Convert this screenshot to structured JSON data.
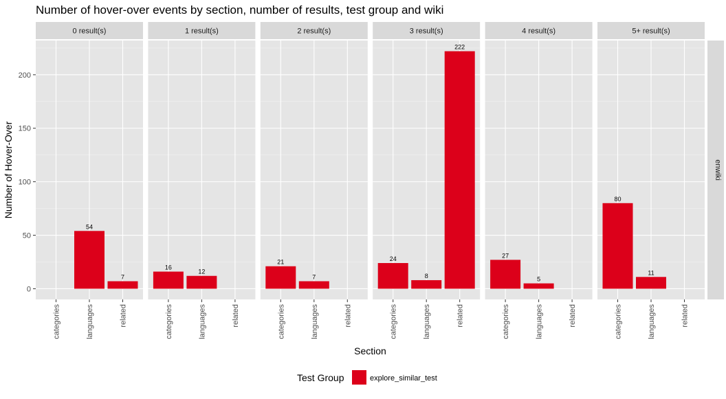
{
  "chart_data": {
    "type": "bar",
    "title": "Number of hover-over events by section, number of results, test group and wiki",
    "xlabel": "Section",
    "ylabel": "Number of Hover-Over",
    "ylim": [
      -10,
      232
    ],
    "yticks": [
      0,
      50,
      100,
      150,
      200
    ],
    "categories": [
      "categories",
      "languages",
      "related"
    ],
    "row_facet": "enwiki",
    "legend": {
      "title": "Test Group",
      "position": "bottom",
      "entries": [
        {
          "name": "explore_similar_test",
          "color": "#DC001A"
        }
      ]
    },
    "grid": true,
    "panels": [
      {
        "label": "0 result(s)",
        "values": [
          null,
          54,
          7
        ]
      },
      {
        "label": "1 result(s)",
        "values": [
          16,
          12,
          null
        ]
      },
      {
        "label": "2 result(s)",
        "values": [
          21,
          7,
          null
        ]
      },
      {
        "label": "3 result(s)",
        "values": [
          24,
          8,
          222
        ]
      },
      {
        "label": "4 result(s)",
        "values": [
          27,
          5,
          null
        ]
      },
      {
        "label": "5+ result(s)",
        "values": [
          80,
          11,
          null
        ]
      }
    ],
    "colors": {
      "bar": "#DC001A",
      "panel_bg": "#E5E5E5",
      "strip_bg": "#D9D9D9",
      "grid_major": "#FFFFFF"
    }
  }
}
